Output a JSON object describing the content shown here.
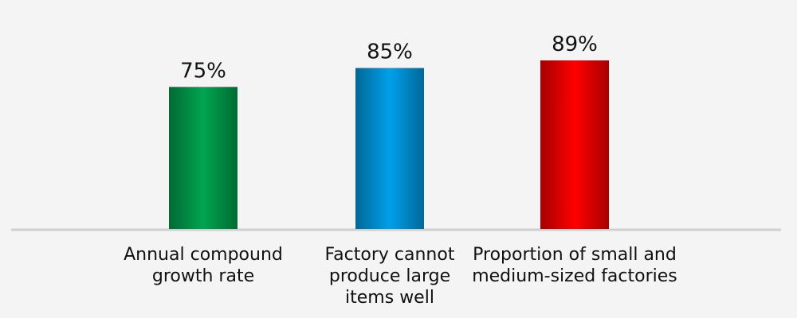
{
  "chart_data": {
    "type": "bar",
    "categories": [
      "Annual compound growth rate",
      "Factory cannot produce large items well",
      "Proportion of small and medium-sized factories"
    ],
    "values": [
      75,
      85,
      89
    ],
    "value_labels": [
      "75%",
      "85%",
      "89%"
    ],
    "colors": [
      "#00a550",
      "#00a0e9",
      "#ff0000"
    ]
  }
}
